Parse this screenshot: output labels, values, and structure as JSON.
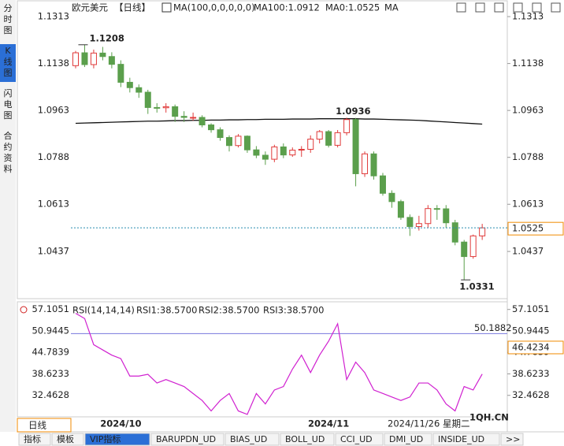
{
  "side_tabs": [
    "分时图",
    "K线图",
    "闪电图",
    "合约资料"
  ],
  "bottom_tabs": [
    "指标",
    "模板",
    "VIP指标",
    "BARUPDN_UD",
    "BIAS_UD",
    "BOLL_UD",
    "CCI_UD",
    "DMI_UD",
    "INSIDE_UD",
    ">>"
  ],
  "chart_data": {
    "type": "candlestick",
    "header": {
      "symbol": "欧元美元",
      "period": "【日线】",
      "ma_spec": "MA(100,0,0,0,0,0)",
      "ma100": "MA100:1.0912",
      "ma0": "MA0:1.0525",
      "ma": "MA"
    },
    "categories": [
      null,
      null,
      null,
      null,
      null,
      "2024/10",
      null,
      null,
      null,
      null,
      null,
      null,
      null,
      null,
      null,
      null,
      null,
      null,
      null,
      null,
      null,
      null,
      null,
      null,
      null,
      null,
      null,
      null,
      "2024/11",
      null,
      null,
      null,
      null,
      null,
      null,
      null,
      null,
      null,
      null,
      null,
      null,
      null,
      null,
      null,
      null,
      null
    ],
    "cursor_date": "2024/11/26 星期二",
    "period_label": "日线",
    "up_color": "#e03a3a",
    "down_color": "#5b9f4c",
    "candles": [
      [
        1.113,
        1.1185,
        1.112,
        1.1178
      ],
      [
        1.1178,
        1.1208,
        1.1125,
        1.1134
      ],
      [
        1.1134,
        1.119,
        1.112,
        1.1177
      ],
      [
        1.1177,
        1.12,
        1.115,
        1.1164
      ],
      [
        1.1164,
        1.118,
        1.112,
        1.1135
      ],
      [
        1.1135,
        1.115,
        1.105,
        1.1068
      ],
      [
        1.1068,
        1.1085,
        1.103,
        1.1048
      ],
      [
        1.1048,
        1.106,
        1.101,
        1.1031
      ],
      [
        1.1031,
        1.104,
        1.095,
        1.0974
      ],
      [
        1.0974,
        1.099,
        1.0955,
        1.0973
      ],
      [
        1.0973,
        1.099,
        1.0955,
        1.0977
      ],
      [
        1.0977,
        1.0985,
        1.092,
        1.0941
      ],
      [
        1.0941,
        1.096,
        1.092,
        1.0937
      ],
      [
        1.0937,
        1.0955,
        1.0925,
        1.0937
      ],
      [
        1.0937,
        1.0945,
        1.09,
        1.0909
      ],
      [
        1.0909,
        1.0915,
        1.088,
        1.0891
      ],
      [
        1.0891,
        1.09,
        1.085,
        1.0862
      ],
      [
        1.0862,
        1.087,
        1.081,
        1.0832
      ],
      [
        1.0832,
        1.0875,
        1.0825,
        1.0867
      ],
      [
        1.0867,
        1.087,
        1.0805,
        1.0816
      ],
      [
        1.0816,
        1.083,
        1.0785,
        1.0796
      ],
      [
        1.0796,
        1.081,
        1.076,
        1.0781
      ],
      [
        1.0781,
        1.0835,
        1.077,
        1.0827
      ],
      [
        1.0827,
        1.084,
        1.0785,
        1.0797
      ],
      [
        1.0797,
        1.0825,
        1.079,
        1.0815
      ],
      [
        1.0815,
        1.083,
        1.079,
        1.0818
      ],
      [
        1.0818,
        1.087,
        1.0805,
        1.0856
      ],
      [
        1.0856,
        1.089,
        1.084,
        1.0884
      ],
      [
        1.0884,
        1.089,
        1.0825,
        1.0833
      ],
      [
        1.0833,
        1.089,
        1.0825,
        1.088
      ],
      [
        1.088,
        1.0936,
        1.087,
        1.0929
      ],
      [
        1.0929,
        1.0935,
        1.068,
        1.0727
      ],
      [
        1.0727,
        1.081,
        1.0715,
        1.0801
      ],
      [
        1.0801,
        1.081,
        1.0705,
        1.0719
      ],
      [
        1.0719,
        1.073,
        1.0645,
        1.0654
      ],
      [
        1.0654,
        1.0665,
        1.06,
        1.0623
      ],
      [
        1.0623,
        1.063,
        1.0555,
        1.0564
      ],
      [
        1.0564,
        1.0575,
        1.0495,
        1.053
      ],
      [
        1.053,
        1.057,
        1.0515,
        1.0541
      ],
      [
        1.0541,
        1.061,
        1.0525,
        1.0597
      ],
      [
        1.0597,
        1.061,
        1.0555,
        1.0596
      ],
      [
        1.0596,
        1.061,
        1.0525,
        1.0544
      ],
      [
        1.0544,
        1.0555,
        1.046,
        1.0472
      ],
      [
        1.0472,
        1.048,
        1.0331,
        1.0418
      ],
      [
        1.0418,
        1.05,
        1.041,
        1.0495
      ],
      [
        1.0495,
        1.054,
        1.048,
        1.0525
      ]
    ],
    "ma100": [
      1.0915,
      1.0916,
      1.0917,
      1.0918,
      1.0919,
      1.092,
      1.0921,
      1.0922,
      1.0923,
      1.0923,
      1.0924,
      1.0925,
      1.0925,
      1.0926,
      1.0926,
      1.0927,
      1.0927,
      1.0928,
      1.0928,
      1.0929,
      1.0929,
      1.093,
      1.093,
      1.093,
      1.0931,
      1.0931,
      1.0931,
      1.0932,
      1.0932,
      1.0932,
      1.0932,
      1.0932,
      1.0931,
      1.0931,
      1.093,
      1.0929,
      1.0928,
      1.0927,
      1.0926,
      1.0924,
      1.0922,
      1.092,
      1.0918,
      1.0916,
      1.0914,
      1.0912
    ],
    "ylim": [
      1.0261,
      1.1372
    ],
    "yticks": [
      1.1313,
      1.1138,
      1.0963,
      1.0788,
      1.0613,
      1.0437
    ],
    "rsi": {
      "header": {
        "spec": "RSI(14,14,14)",
        "rsi1": "RSI1:38.5700",
        "rsi2": "RSI2:38.5700",
        "rsi3": "RSI3:38.5700"
      },
      "color": "#d020d0",
      "values": [
        56,
        54.5,
        47,
        45.5,
        44,
        43,
        38,
        38,
        38.5,
        36,
        37,
        36,
        35,
        33,
        31,
        28,
        31,
        33,
        28,
        27,
        33,
        30,
        34,
        35,
        40,
        44,
        39,
        44,
        48,
        53,
        37,
        42,
        39,
        34,
        33,
        32,
        31,
        32,
        36,
        36,
        34,
        30,
        28,
        35,
        34,
        38.57
      ],
      "ylim": [
        26.3,
        59.3
      ],
      "yticks": [
        57.1051,
        50.9445,
        44.7839,
        38.6233,
        32.4628
      ],
      "reference": 50.1882,
      "cursor_value": 46.4234
    },
    "watermark": "1QH.CN"
  }
}
